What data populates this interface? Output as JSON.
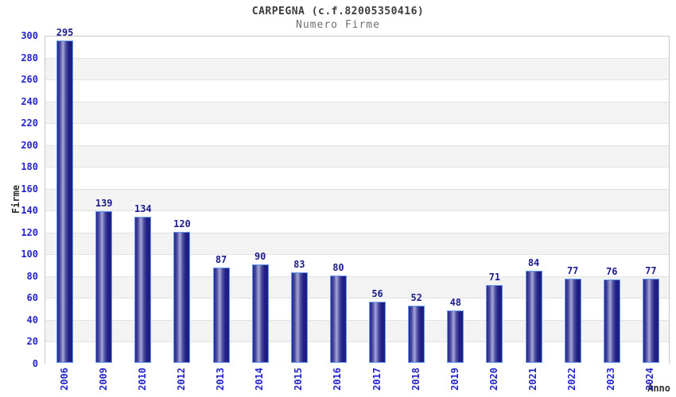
{
  "chart": {
    "title": "CARPEGNA (c.f.82005350416)",
    "subtitle": "Numero Firme",
    "y_axis_title": "Firme",
    "x_axis_title": "Anno"
  },
  "chart_data": {
    "type": "bar",
    "title": "CARPEGNA (c.f.82005350416)",
    "subtitle": "Numero Firme",
    "xlabel": "Anno",
    "ylabel": "Firme",
    "categories": [
      "2006",
      "2009",
      "2010",
      "2012",
      "2013",
      "2014",
      "2015",
      "2016",
      "2017",
      "2018",
      "2019",
      "2020",
      "2021",
      "2022",
      "2023",
      "2024"
    ],
    "values": [
      295,
      139,
      134,
      120,
      87,
      90,
      83,
      80,
      56,
      52,
      48,
      71,
      84,
      77,
      76,
      77
    ],
    "ylim": [
      0,
      300
    ],
    "ytick_step": 20,
    "grid": true,
    "legend": "none",
    "bar_labels_shown": true,
    "colors": {
      "bar_dark": "#1e1e84",
      "bar_highlight": "#a6a6d6",
      "bar_border": "#6699ee",
      "tick_label_blue": "#2424cc",
      "value_label_navy": "#1c1c8a",
      "band_gray": "#f3f3f3",
      "band_white": "#ffffff",
      "grid_line": "#e2e2e2",
      "plot_border": "#c9c9c9",
      "title_color": "#3d3d3d",
      "subtitle_color": "#6f6f6f",
      "axis_title_color": "#2e2e2e"
    }
  }
}
